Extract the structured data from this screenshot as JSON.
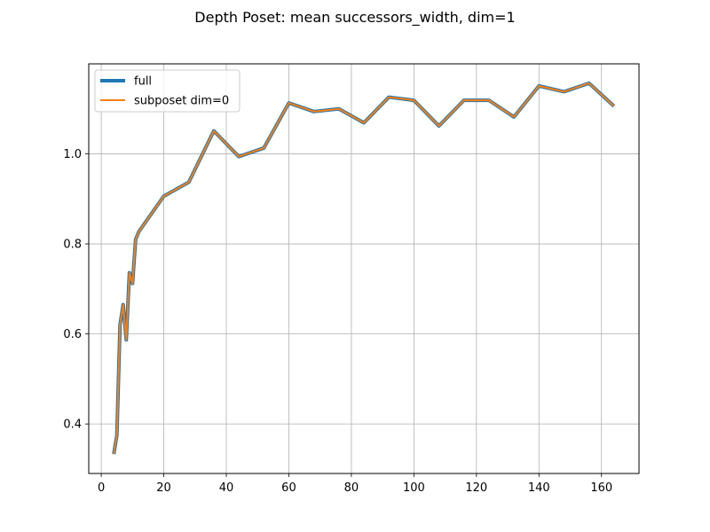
{
  "chart_data": {
    "type": "line",
    "title": "Depth Poset: mean successors_width, dim=1",
    "xlabel": "",
    "ylabel": "",
    "xlim": [
      -4.0,
      172.0
    ],
    "ylim": [
      0.29,
      1.2
    ],
    "xticks": [
      0,
      20,
      40,
      60,
      80,
      100,
      120,
      140,
      160
    ],
    "yticks": [
      0.4,
      0.6,
      0.8,
      1.0
    ],
    "grid": true,
    "legend_position": "top-left",
    "x": [
      4,
      5,
      6,
      7,
      8,
      9,
      10,
      11,
      12,
      20,
      28,
      36,
      44,
      52,
      60,
      68,
      76,
      84,
      92,
      100,
      108,
      116,
      124,
      132,
      140,
      148,
      156,
      164
    ],
    "series": [
      {
        "name": "full",
        "color": "#1f77b4",
        "values": [
          0.333,
          0.375,
          0.62,
          0.665,
          0.587,
          0.736,
          0.712,
          0.81,
          0.827,
          0.906,
          0.937,
          1.051,
          0.994,
          1.013,
          1.113,
          1.094,
          1.1,
          1.069,
          1.126,
          1.119,
          1.062,
          1.119,
          1.119,
          1.082,
          1.151,
          1.138,
          1.157,
          1.106
        ]
      },
      {
        "name": "subposet dim=0",
        "color": "#ff7f0e",
        "values": [
          0.333,
          0.375,
          0.62,
          0.665,
          0.587,
          0.736,
          0.712,
          0.81,
          0.827,
          0.906,
          0.937,
          1.051,
          0.994,
          1.013,
          1.113,
          1.094,
          1.1,
          1.069,
          1.126,
          1.119,
          1.062,
          1.119,
          1.119,
          1.082,
          1.151,
          1.138,
          1.157,
          1.106
        ]
      }
    ]
  }
}
